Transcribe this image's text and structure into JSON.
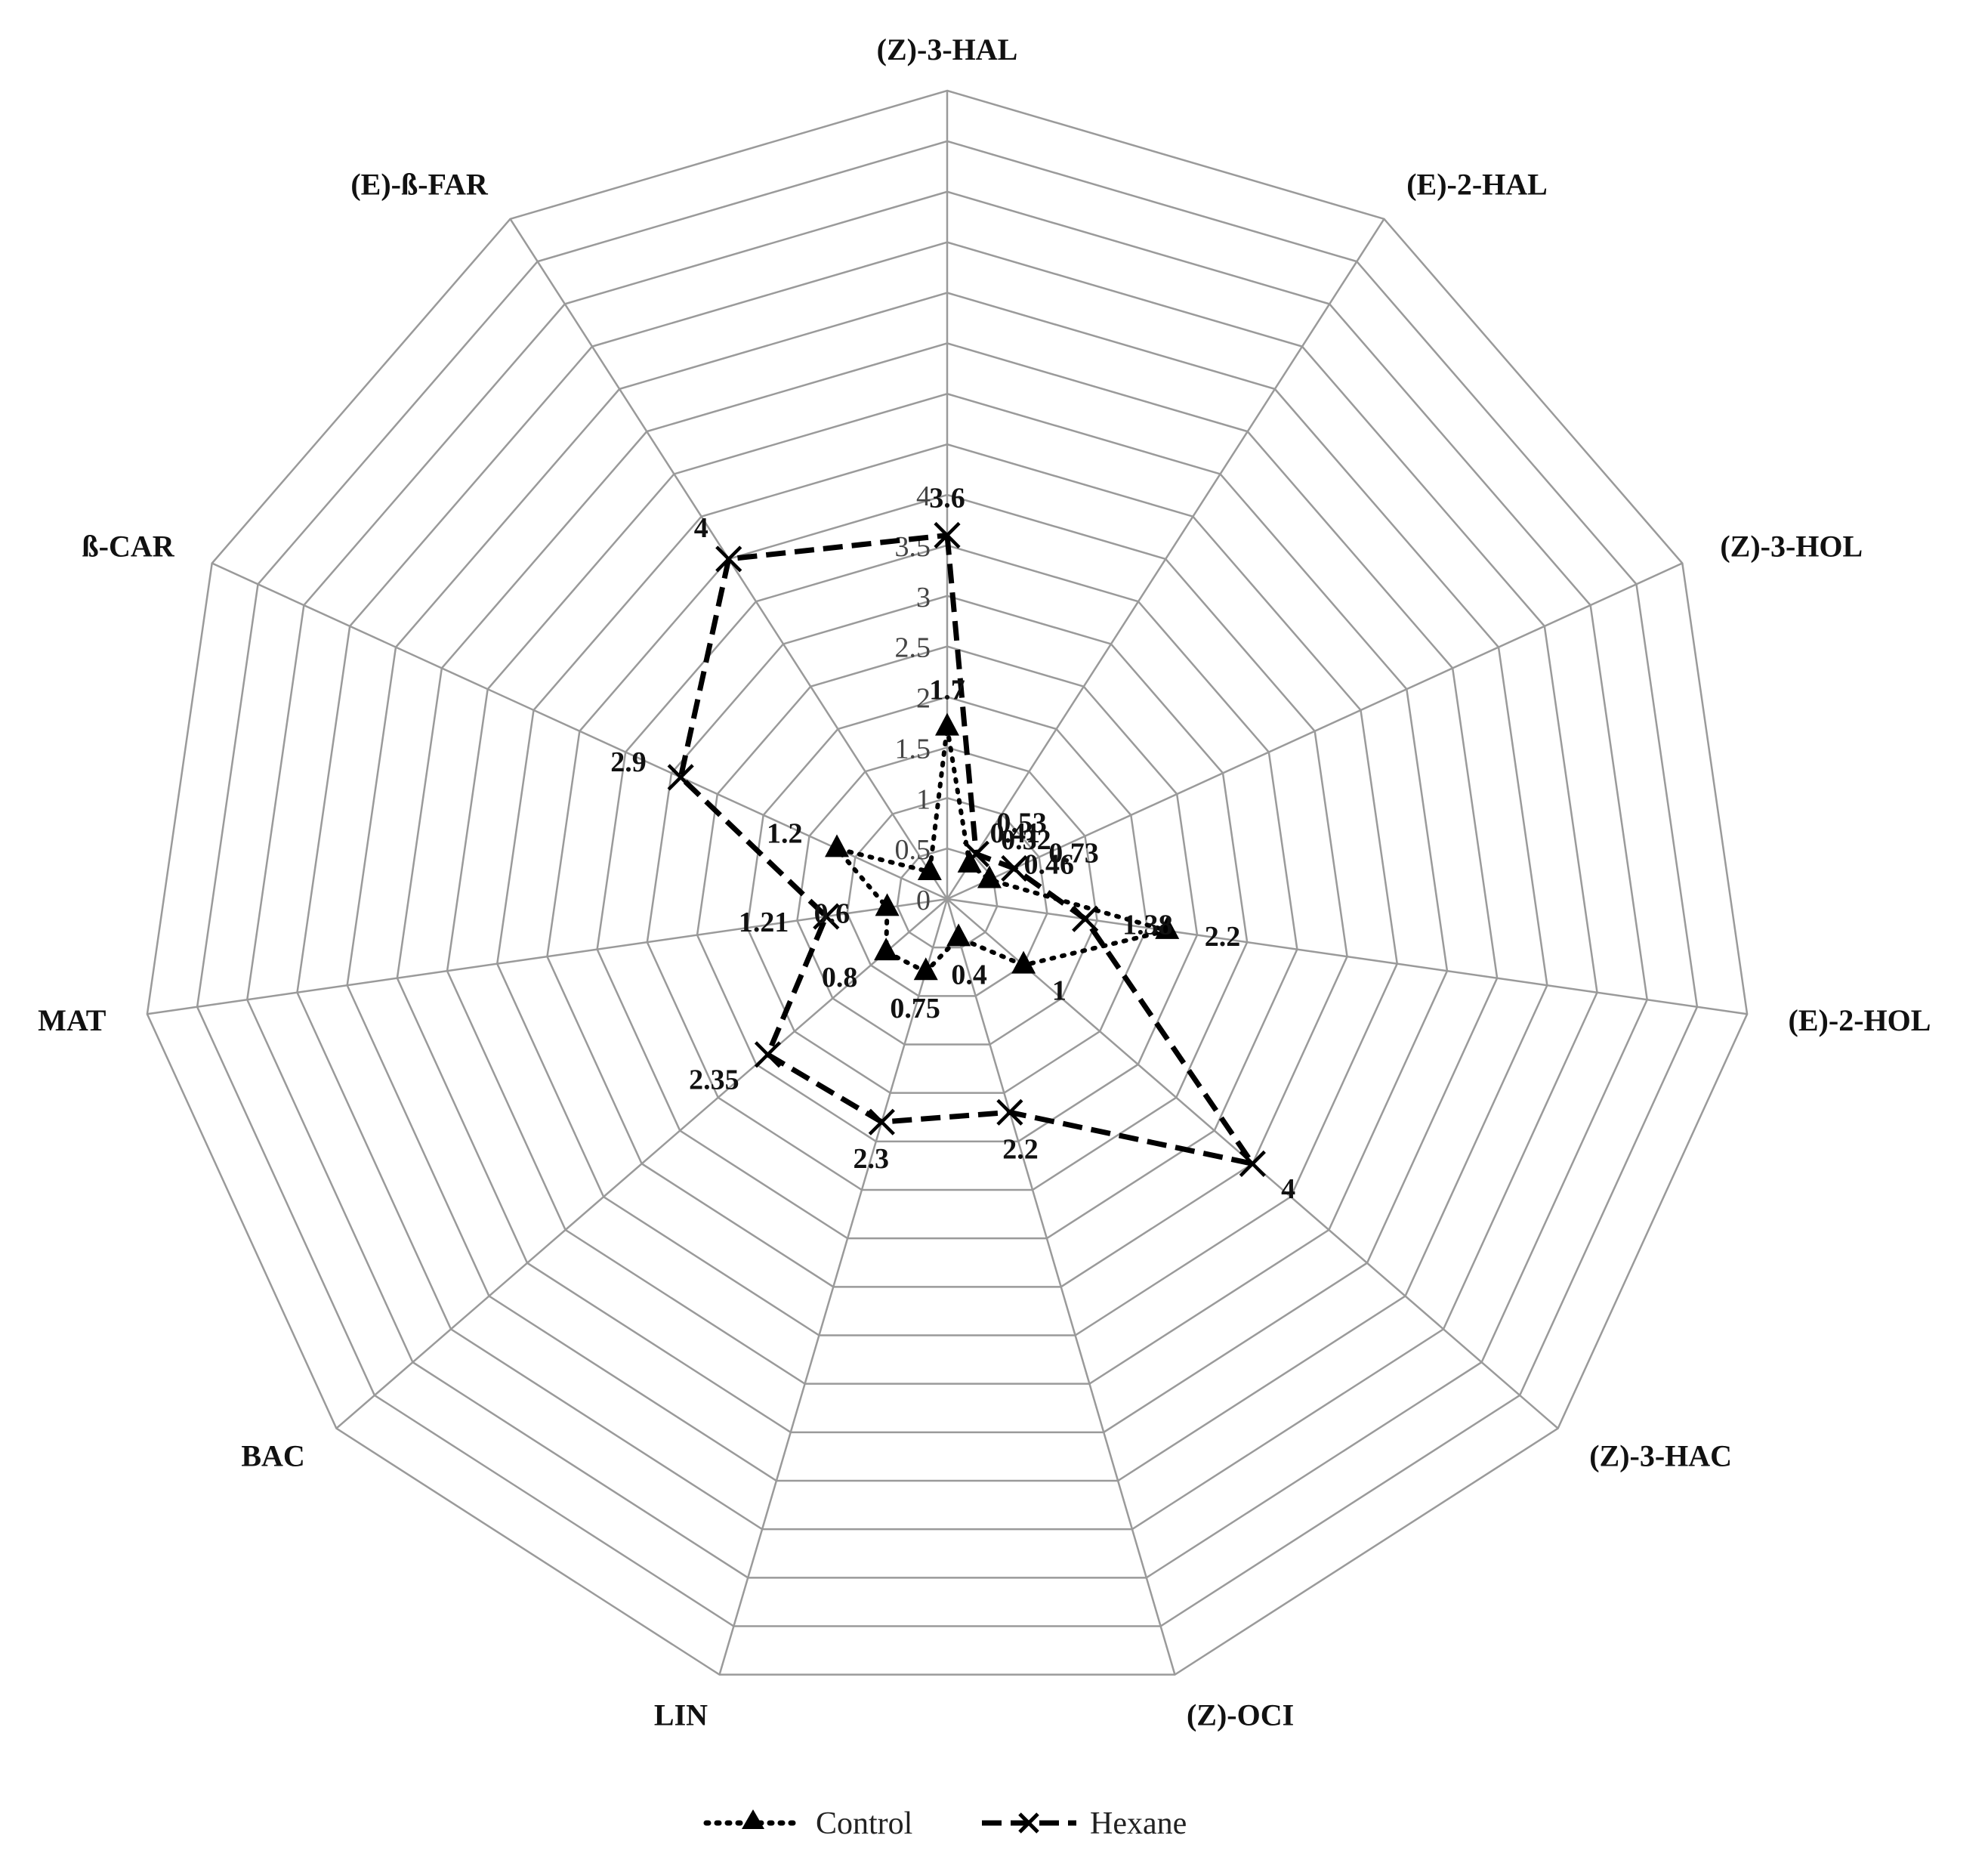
{
  "chart_data": {
    "type": "radar",
    "title": "",
    "axes": [
      "(Z)-3-HAL",
      "(E)-2-HAL",
      "(Z)-3-HOL",
      "(E)-2-HOL",
      "(Z)-3-HAC",
      "(Z)-OCI",
      "LIN",
      "BAC",
      "MAT",
      "ß-CAR",
      "(E)-ß-FAR"
    ],
    "radial_range": [
      0,
      4
    ],
    "ticks": [
      "0",
      "0.5",
      "1",
      "1.5",
      "2",
      "2.5",
      "3",
      "3.5",
      "4"
    ],
    "grid": true,
    "legend_position": "bottom",
    "series": [
      {
        "name": "Control",
        "line_style": "dotted",
        "marker": "triangle",
        "color": "#000000",
        "values": [
          1.7,
          0.41,
          0.46,
          2.2,
          1.0,
          0.4,
          0.75,
          0.8,
          0.6,
          1.2,
          0.32
        ],
        "labels": [
          "1.7",
          "0.41",
          "0.46",
          "2.2",
          "1",
          "0.4",
          "0.75",
          "0.8",
          "0.6",
          "1.2",
          ""
        ]
      },
      {
        "name": "Hexane",
        "line_style": "dashed",
        "marker": "x",
        "color": "#000000",
        "values": [
          3.6,
          0.53,
          0.73,
          1.38,
          4.0,
          2.2,
          2.3,
          2.35,
          1.21,
          2.9,
          4.0
        ],
        "labels": [
          "3.6",
          "0.53",
          "0.73",
          "1.38",
          "4",
          "2.2",
          "2.3",
          "2.35",
          "1.21",
          "2.9",
          "4"
        ]
      }
    ],
    "extra_labels": [
      "0.32"
    ]
  }
}
